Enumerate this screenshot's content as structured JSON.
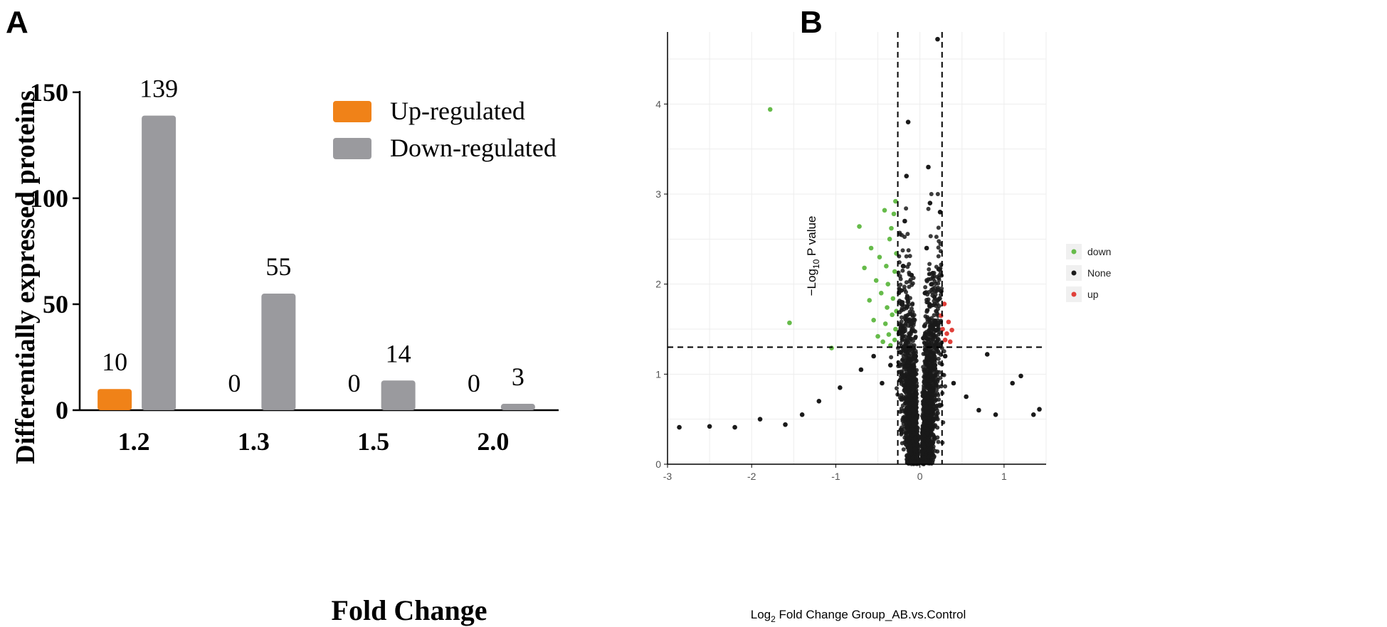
{
  "panels": {
    "a": {
      "letter": "A"
    },
    "b": {
      "letter": "B"
    }
  },
  "colors": {
    "up": "#f08218",
    "down_bar": "#9a9a9e",
    "vol_down": "#66bb4a",
    "vol_none": "#1a1a1a",
    "vol_up": "#e0403a"
  },
  "chart_data": [
    {
      "type": "bar",
      "categories": [
        "1.2",
        "1.3",
        "1.5",
        "2.0"
      ],
      "series": [
        {
          "name": "Up-regulated",
          "values": [
            10,
            0,
            0,
            0
          ]
        },
        {
          "name": "Down-regulated",
          "values": [
            139,
            55,
            14,
            3
          ]
        }
      ],
      "data_labels": [
        [
          "10",
          "0",
          "0",
          "0"
        ],
        [
          "139",
          "55",
          "14",
          "3"
        ]
      ],
      "xlabel": "Fold Change",
      "ylabel": "Differentially expressed proteins",
      "ylim": [
        0,
        160
      ],
      "yticks": [
        0,
        50,
        100,
        150
      ],
      "legend_position": "top-right",
      "grid": false
    },
    {
      "type": "scatter",
      "xlabel_main": "Log",
      "xlabel_sub": "2",
      "xlabel_rest": " Fold Change Group_AB.vs.Control",
      "ylabel_main": "−Log",
      "ylabel_sub": "10",
      "ylabel_rest": " P value",
      "xlim": [
        -3,
        1.5
      ],
      "ylim": [
        0,
        4.8
      ],
      "xticks": [
        -3,
        -2,
        -1,
        0,
        1
      ],
      "yticks": [
        0,
        1,
        2,
        3,
        4
      ],
      "thresholds": {
        "x": [
          -0.263,
          0.263
        ],
        "y": 1.3
      },
      "legend": [
        "down",
        "None",
        "up"
      ],
      "legend_position": "right",
      "grid": true,
      "series": [
        {
          "name": "down",
          "points": [
            [
              -1.78,
              3.94
            ],
            [
              -1.55,
              1.57
            ],
            [
              -1.05,
              1.29
            ],
            [
              -0.72,
              2.64
            ],
            [
              -0.66,
              2.18
            ],
            [
              -0.6,
              1.82
            ],
            [
              -0.58,
              2.4
            ],
            [
              -0.55,
              1.6
            ],
            [
              -0.52,
              2.04
            ],
            [
              -0.5,
              1.42
            ],
            [
              -0.48,
              2.3
            ],
            [
              -0.46,
              1.9
            ],
            [
              -0.44,
              1.36
            ],
            [
              -0.42,
              2.82
            ],
            [
              -0.41,
              1.56
            ],
            [
              -0.4,
              2.2
            ],
            [
              -0.39,
              1.74
            ],
            [
              -0.38,
              2.0
            ],
            [
              -0.37,
              1.44
            ],
            [
              -0.36,
              2.5
            ],
            [
              -0.35,
              1.32
            ],
            [
              -0.34,
              2.62
            ],
            [
              -0.33,
              1.66
            ],
            [
              -0.32,
              1.84
            ],
            [
              -0.31,
              2.78
            ],
            [
              -0.3,
              1.38
            ],
            [
              -0.3,
              2.14
            ],
            [
              -0.29,
              1.5
            ],
            [
              -0.29,
              2.92
            ],
            [
              -0.28,
              1.7
            ],
            [
              -0.28,
              2.34
            ]
          ]
        },
        {
          "name": "None",
          "points": [
            [
              -2.86,
              0.41
            ],
            [
              -2.5,
              0.42
            ],
            [
              -2.2,
              0.41
            ],
            [
              -1.9,
              0.5
            ],
            [
              -1.6,
              0.44
            ],
            [
              -1.4,
              0.55
            ],
            [
              -1.2,
              0.7
            ],
            [
              -0.95,
              0.85
            ],
            [
              -0.7,
              1.05
            ],
            [
              -0.55,
              1.2
            ],
            [
              -0.45,
              0.9
            ],
            [
              -0.35,
              1.1
            ],
            [
              -0.25,
              1.45
            ],
            [
              -0.22,
              1.8
            ],
            [
              -0.2,
              2.2
            ],
            [
              -0.18,
              2.7
            ],
            [
              -0.16,
              3.2
            ],
            [
              -0.14,
              3.8
            ],
            [
              -0.1,
              2.1
            ],
            [
              -0.08,
              1.6
            ],
            [
              -0.05,
              1.2
            ],
            [
              0.0,
              0.3
            ],
            [
              0.04,
              1.4
            ],
            [
              0.06,
              1.9
            ],
            [
              0.08,
              2.4
            ],
            [
              0.1,
              3.3
            ],
            [
              0.12,
              2.9
            ],
            [
              0.14,
              2.0
            ],
            [
              0.16,
              1.5
            ],
            [
              0.18,
              1.1
            ],
            [
              0.21,
              4.72
            ],
            [
              0.24,
              2.8
            ],
            [
              0.3,
              1.2
            ],
            [
              0.4,
              0.9
            ],
            [
              0.55,
              0.75
            ],
            [
              0.7,
              0.6
            ],
            [
              0.8,
              1.22
            ],
            [
              0.9,
              0.55
            ],
            [
              1.1,
              0.9
            ],
            [
              1.2,
              0.98
            ],
            [
              1.35,
              0.55
            ],
            [
              1.42,
              0.61
            ]
          ]
        },
        {
          "name": "up",
          "points": [
            [
              0.25,
              1.65
            ],
            [
              0.27,
              1.5
            ],
            [
              0.29,
              1.78
            ],
            [
              0.3,
              1.38
            ],
            [
              0.32,
              1.45
            ],
            [
              0.34,
              1.58
            ],
            [
              0.36,
              1.36
            ],
            [
              0.38,
              1.49
            ]
          ]
        }
      ]
    }
  ]
}
